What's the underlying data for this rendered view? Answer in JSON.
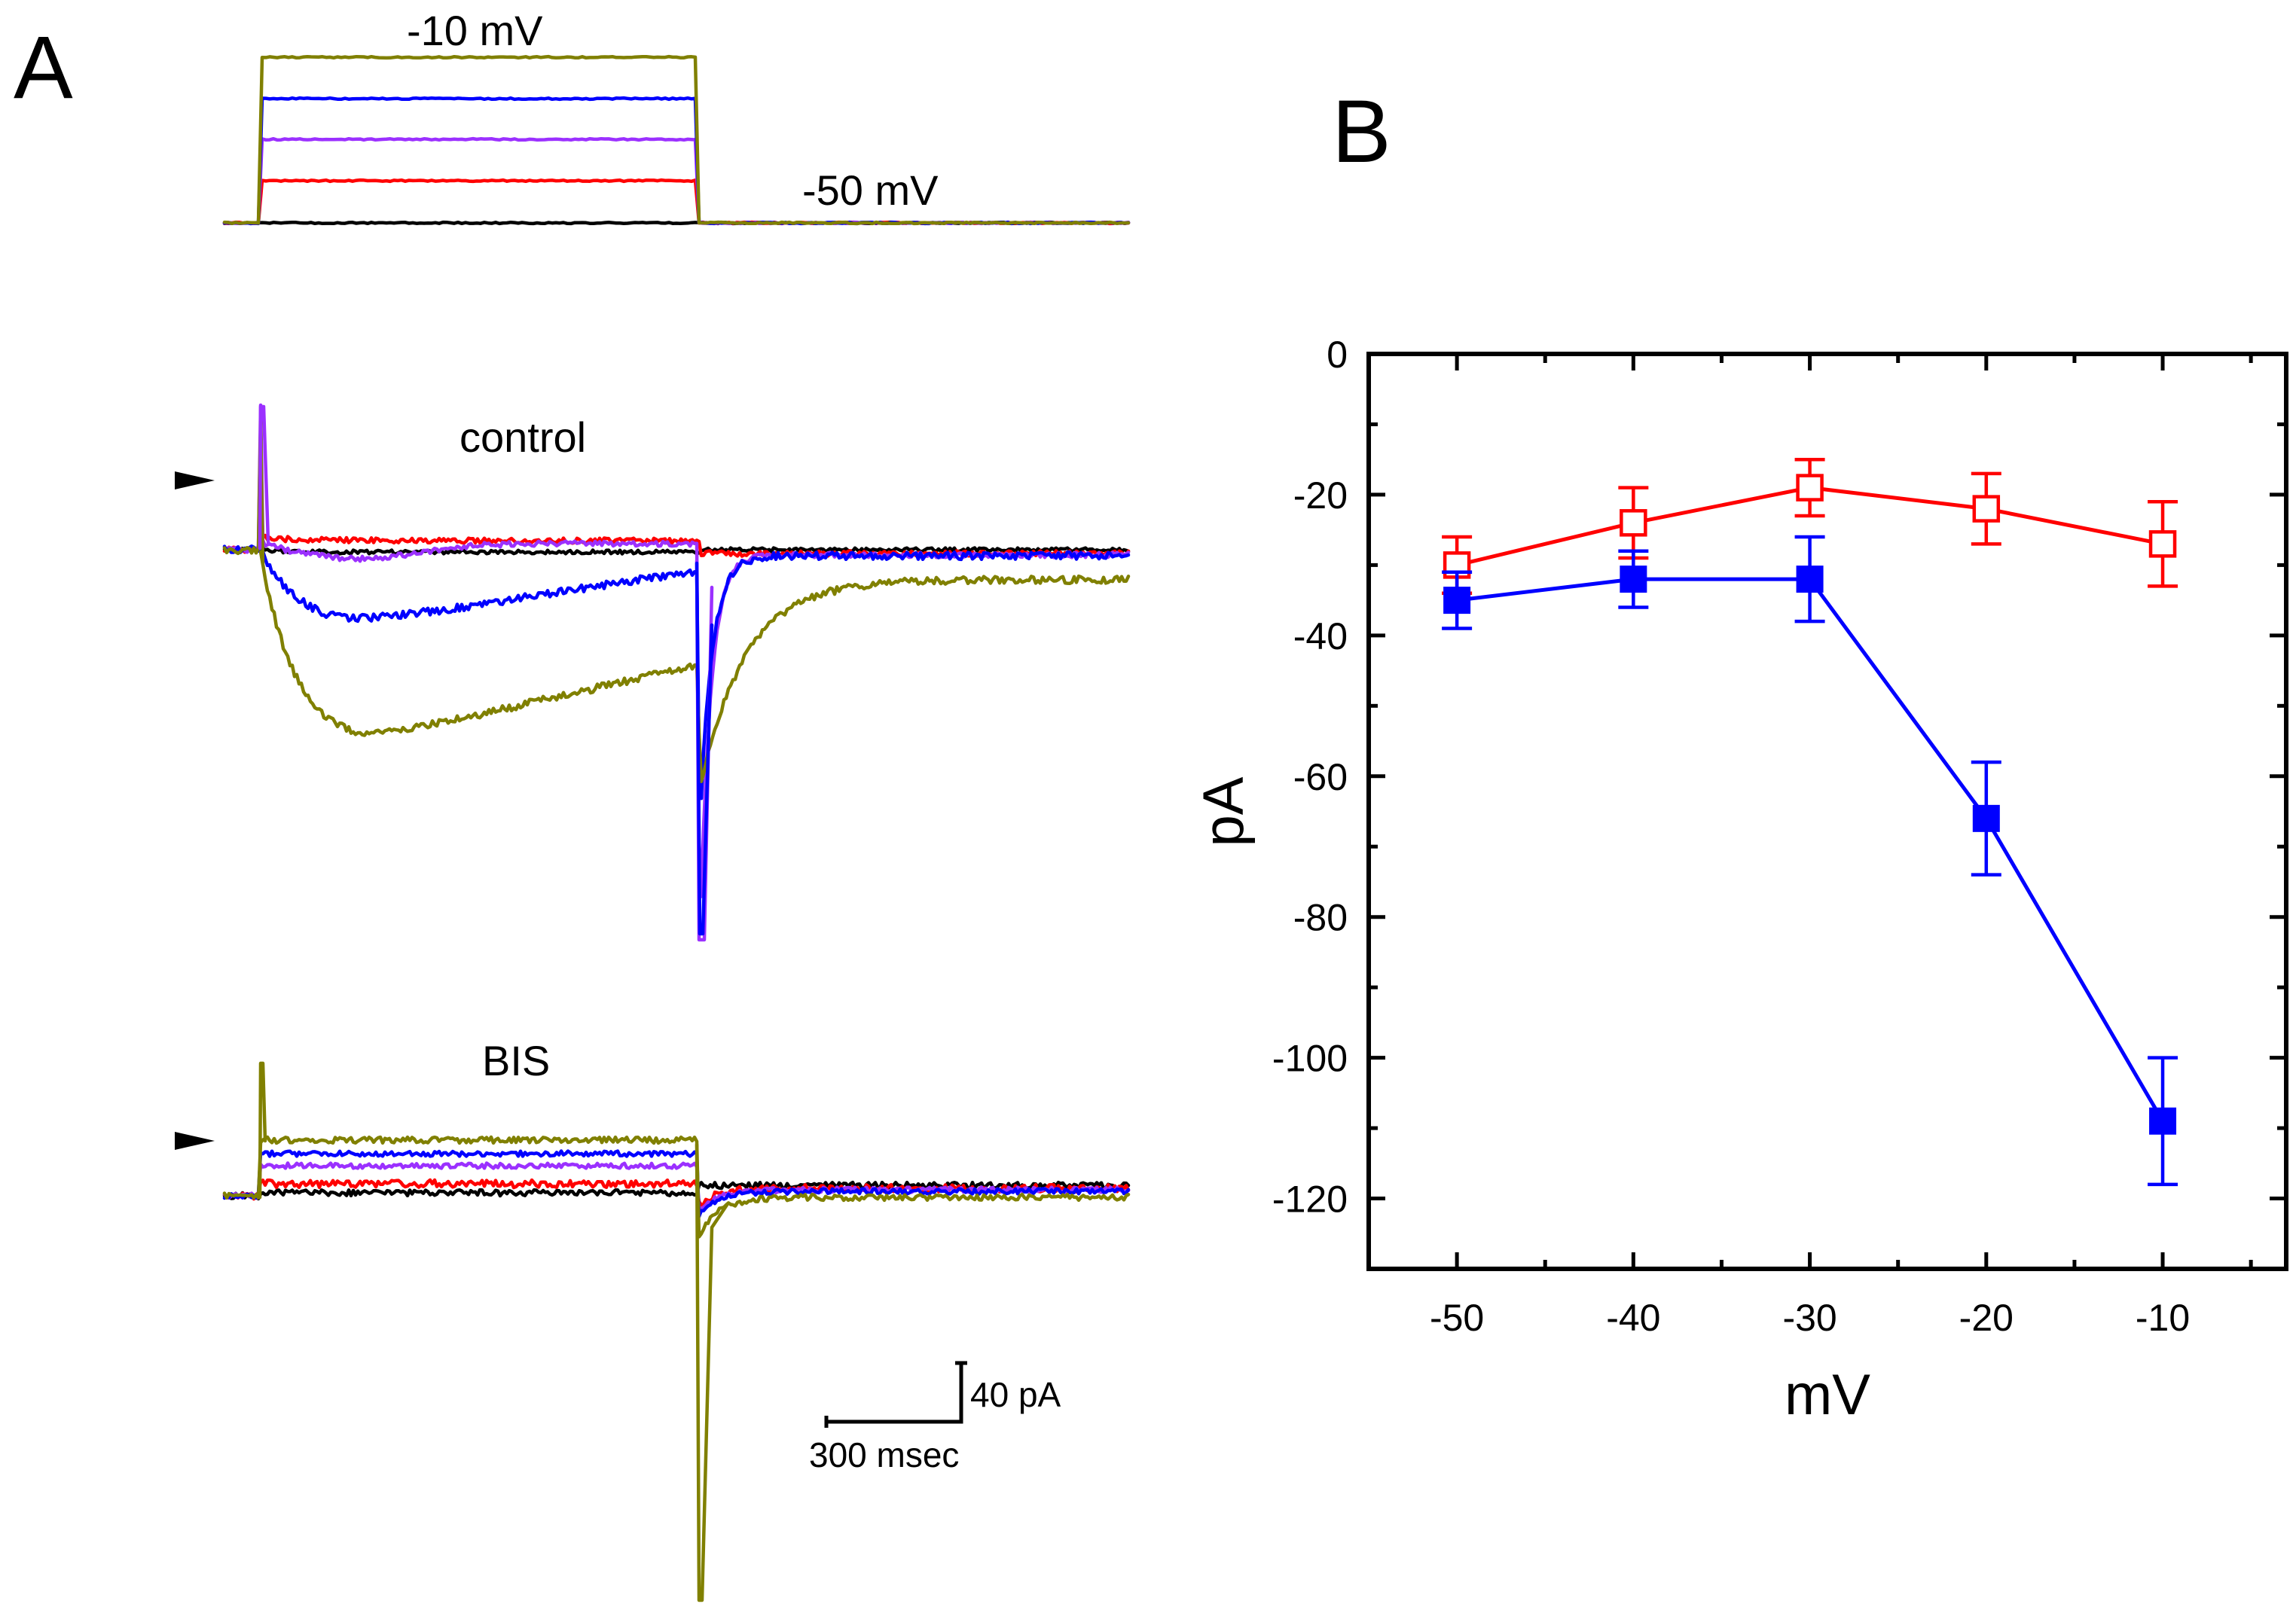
{
  "panelA": {
    "label": "A",
    "protocol": {
      "step_label": "-10 mV",
      "hold_label": "-50 mV"
    },
    "control_label": "control",
    "bis_label": "BIS",
    "scalebar": {
      "current_label": "40 pA",
      "time_label": "300 msec"
    },
    "trace_colors": {
      "-50": "#000000",
      "-40": "#ff0000",
      "-30": "#9b30ff",
      "-20": "#0000ff",
      "-10": "#808000"
    }
  },
  "chart_data": {
    "type": "line",
    "panel_label": "B",
    "xlabel": "mV",
    "ylabel": "pA",
    "x": [
      -50,
      -40,
      -30,
      -20,
      -10
    ],
    "xlim": [
      -55,
      -3
    ],
    "ylim": [
      -130,
      0
    ],
    "xticks": [
      -50,
      -40,
      -30,
      -20,
      -10
    ],
    "yticks": [
      0,
      -20,
      -40,
      -60,
      -80,
      -100,
      -120
    ],
    "x_tick_labels": [
      "-50",
      "-40",
      "-30",
      "-20",
      "-10"
    ],
    "y_tick_labels": [
      "0",
      "-20",
      "-40",
      "-60",
      "-80",
      "-100",
      "-120"
    ],
    "grid": false,
    "legend": "none",
    "series": [
      {
        "name": "control",
        "color": "#0000ff",
        "marker": "filled-square",
        "values": [
          -35,
          -32,
          -32,
          -66,
          -109
        ],
        "errors": [
          4,
          4,
          6,
          8,
          9
        ]
      },
      {
        "name": "BIS",
        "color": "#ff0000",
        "marker": "open-square",
        "values": [
          -30,
          -24,
          -19,
          -22,
          -27
        ],
        "errors": [
          4,
          5,
          4,
          5,
          6
        ]
      }
    ]
  }
}
